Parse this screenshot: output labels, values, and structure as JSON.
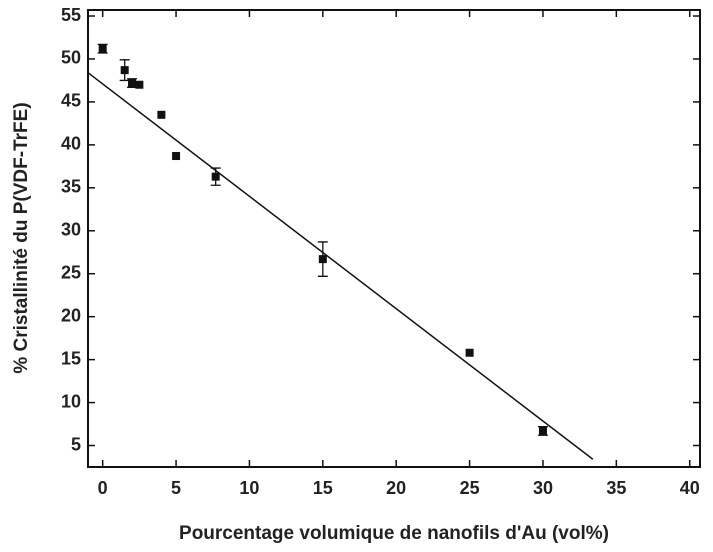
{
  "chart_data": {
    "type": "scatter",
    "x_label": "Pourcentage volumique de nanofils d'Au (vol%)",
    "y_label": "% Cristallinité du P(VDF-TrFE)",
    "series": [
      {
        "color": "#111111",
        "x": [
          0,
          1.5,
          2,
          2.5,
          4,
          5,
          7.7,
          15,
          25,
          30
        ],
        "values": [
          51.2,
          48.7,
          47.2,
          47.0,
          43.5,
          38.7,
          36.3,
          26.7,
          15.8,
          6.7
        ],
        "errors": [
          0.5,
          1.2,
          0.5,
          null,
          null,
          null,
          1.0,
          2.0,
          null,
          0.5
        ]
      }
    ],
    "fit": {
      "color": "#111111",
      "x": [
        -1,
        33.4
      ],
      "values": [
        48.4,
        3.4
      ]
    },
    "xlim": [
      -1,
      40.7
    ],
    "ylim": [
      2.5,
      55.7
    ],
    "xticks": [
      0,
      5,
      10,
      15,
      20,
      25,
      30,
      35,
      40
    ],
    "yticks": [
      5,
      10,
      15,
      20,
      25,
      30,
      35,
      40,
      45,
      50,
      55
    ]
  }
}
